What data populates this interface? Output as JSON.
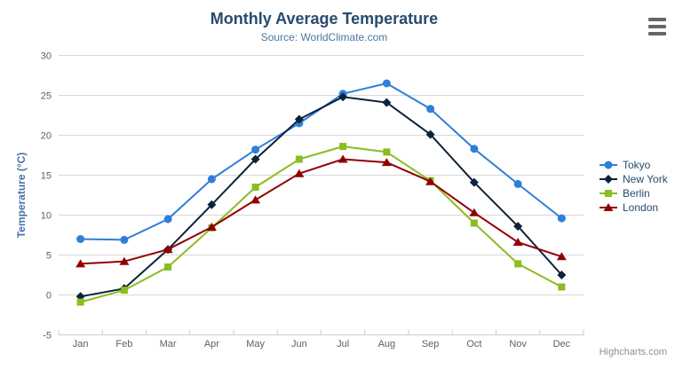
{
  "chart": {
    "credits": "Highcharts.com",
    "icons": {
      "export_menu": "hamburger-icon"
    },
    "colors": {
      "title": "#274b6d",
      "subtitle": "#4d759e",
      "axis_line": "#C0D0E0",
      "gridline": "#D8D8D8",
      "tick_label": "#606060",
      "axis_title": "#4572A7",
      "legend_text": "#274b6d",
      "credits": "#909090",
      "export_icon": "#666666"
    }
  },
  "chart_data": {
    "type": "line",
    "title": "Monthly Average Temperature",
    "subtitle": "Source: WorldClimate.com",
    "xlabel": "",
    "ylabel": "Temperature (°C)",
    "categories": [
      "Jan",
      "Feb",
      "Mar",
      "Apr",
      "May",
      "Jun",
      "Jul",
      "Aug",
      "Sep",
      "Oct",
      "Nov",
      "Dec"
    ],
    "series": [
      {
        "name": "Tokyo",
        "color": "#2f7ed8",
        "marker": "circle",
        "values": [
          7.0,
          6.9,
          9.5,
          14.5,
          18.2,
          21.5,
          25.2,
          26.5,
          23.3,
          18.3,
          13.9,
          9.6
        ]
      },
      {
        "name": "New York",
        "color": "#0d233a",
        "marker": "diamond",
        "values": [
          -0.2,
          0.8,
          5.7,
          11.3,
          17.0,
          22.0,
          24.8,
          24.1,
          20.1,
          14.1,
          8.6,
          2.5
        ]
      },
      {
        "name": "Berlin",
        "color": "#8bbc21",
        "marker": "square",
        "values": [
          -0.9,
          0.6,
          3.5,
          8.4,
          13.5,
          17.0,
          18.6,
          17.9,
          14.3,
          9.0,
          3.9,
          1.0
        ]
      },
      {
        "name": "London",
        "color": "#910000",
        "marker": "triangle",
        "values": [
          3.9,
          4.2,
          5.7,
          8.5,
          11.9,
          15.2,
          17.0,
          16.6,
          14.2,
          10.3,
          6.6,
          4.8
        ]
      }
    ],
    "ylim": [
      -5,
      30
    ],
    "yticks": [
      -5,
      0,
      5,
      10,
      15,
      20,
      25,
      30
    ],
    "grid": true,
    "legend_position": "right"
  }
}
